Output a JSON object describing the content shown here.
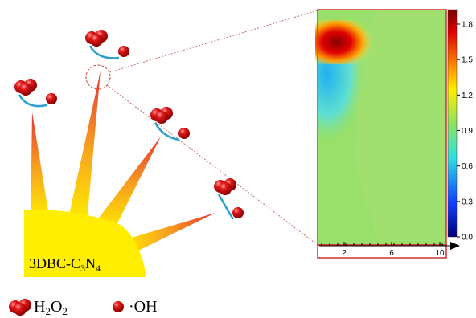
{
  "catalyst_label": [
    "3DBC-C",
    "3",
    "N",
    "4"
  ],
  "legend": {
    "h2o2": [
      "H",
      "2",
      "O",
      "2"
    ],
    "oh": "·OH"
  },
  "colorbar": {
    "ticks": [
      "0.0",
      "0.3",
      "0.6",
      "0.9",
      "1.2",
      "1.5",
      "1.8"
    ]
  },
  "x_axis": {
    "ticks": [
      "2",
      "6",
      "10"
    ]
  }
}
